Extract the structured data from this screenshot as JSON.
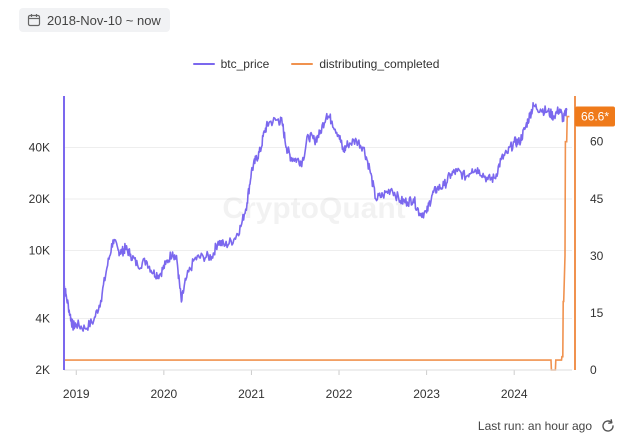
{
  "date_range": {
    "label": "2018-Nov-10 ~ now",
    "icon": "calendar-icon"
  },
  "footer": {
    "last_run": "Last run: an hour ago",
    "icon": "refresh-icon"
  },
  "watermark": "CryptoQuant",
  "colors": {
    "btc_price": "#7b68ee",
    "distributing_completed": "#f0924f",
    "badge": "#ef7a1a",
    "grid": "#eeeeee"
  },
  "chart_data": {
    "type": "line",
    "title": "",
    "legend_position": "top-center",
    "grid": true,
    "x_ticks": [
      "2019",
      "2020",
      "2021",
      "2022",
      "2023",
      "2024"
    ],
    "x_range": [
      2018.86,
      2024.66
    ],
    "y_left": {
      "scale": "log",
      "range": [
        2000,
        80000
      ],
      "ticks": [
        2000,
        4000,
        10000,
        20000,
        40000
      ],
      "tick_labels": [
        "2K",
        "4K",
        "10K",
        "20K",
        "40K"
      ]
    },
    "y_right": {
      "scale": "linear",
      "range": [
        0,
        72
      ],
      "ticks": [
        0,
        15,
        30,
        45,
        60
      ],
      "tick_labels": [
        "0",
        "15",
        "30",
        "45",
        "60"
      ]
    },
    "current_value_badge": "66.6*",
    "series": [
      {
        "name": "btc_price",
        "axis": "left",
        "x": [
          2018.86,
          2018.88,
          2018.93,
          2018.96,
          2019.0,
          2019.1,
          2019.2,
          2019.28,
          2019.35,
          2019.42,
          2019.48,
          2019.52,
          2019.56,
          2019.62,
          2019.7,
          2019.8,
          2019.88,
          2019.95,
          2020.02,
          2020.1,
          2020.15,
          2020.2,
          2020.25,
          2020.35,
          2020.45,
          2020.55,
          2020.62,
          2020.7,
          2020.8,
          2020.88,
          2020.95,
          2021.0,
          2021.05,
          2021.1,
          2021.15,
          2021.2,
          2021.3,
          2021.35,
          2021.4,
          2021.45,
          2021.52,
          2021.58,
          2021.65,
          2021.72,
          2021.78,
          2021.86,
          2021.92,
          2022.0,
          2022.05,
          2022.1,
          2022.2,
          2022.28,
          2022.35,
          2022.42,
          2022.5,
          2022.6,
          2022.7,
          2022.78,
          2022.85,
          2022.92,
          2023.0,
          2023.06,
          2023.12,
          2023.2,
          2023.28,
          2023.35,
          2023.45,
          2023.52,
          2023.6,
          2023.7,
          2023.78,
          2023.85,
          2023.92,
          2024.0,
          2024.06,
          2024.12,
          2024.18,
          2024.22,
          2024.3,
          2024.38,
          2024.45,
          2024.52,
          2024.56,
          2024.6
        ],
        "values": [
          6300,
          5600,
          4200,
          3600,
          3700,
          3500,
          3900,
          5100,
          7900,
          11500,
          10000,
          9800,
          10300,
          9500,
          8200,
          8700,
          7400,
          7200,
          8300,
          9800,
          8700,
          5000,
          6700,
          8900,
          9200,
          9200,
          11300,
          10700,
          11600,
          13800,
          19000,
          29000,
          34000,
          38000,
          50000,
          56000,
          58000,
          56000,
          40000,
          35000,
          34000,
          33000,
          47000,
          44000,
          48000,
          63000,
          57000,
          47000,
          38000,
          42000,
          44000,
          40000,
          30000,
          20000,
          21000,
          23000,
          19500,
          19200,
          20000,
          16500,
          16600,
          21000,
          23000,
          24000,
          28000,
          29000,
          27000,
          30000,
          29500,
          26000,
          26500,
          34000,
          37000,
          43000,
          43000,
          51000,
          62000,
          70000,
          67000,
          65000,
          61000,
          67000,
          58000,
          66000
        ]
      },
      {
        "name": "distributing_completed",
        "axis": "right",
        "x": [
          2018.86,
          2024.42,
          2024.425,
          2024.47,
          2024.475,
          2024.54,
          2024.545,
          2024.555,
          2024.56,
          2024.565,
          2024.58,
          2024.585,
          2024.6,
          2024.605,
          2024.63
        ],
        "values": [
          2.6,
          2.6,
          0,
          0,
          2.6,
          2.6,
          3.5,
          3.5,
          18,
          18,
          30,
          60,
          60,
          66.6,
          66.6
        ]
      }
    ]
  }
}
